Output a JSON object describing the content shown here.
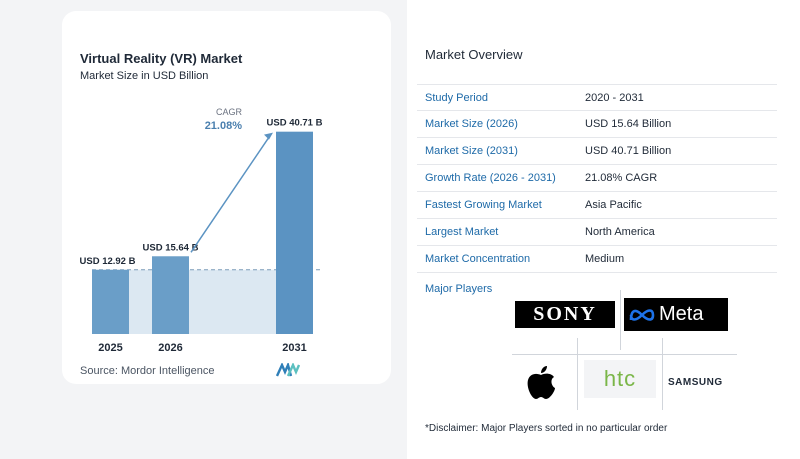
{
  "chart_data": {
    "type": "bar",
    "title": "Virtual Reality (VR) Market",
    "subtitle": "Market Size in USD Billion",
    "categories": [
      "2025",
      "2026",
      "2031"
    ],
    "values": [
      12.92,
      15.64,
      40.71
    ],
    "value_labels": [
      "USD 12.92 B",
      "USD 15.64 B",
      "USD 40.71 B"
    ],
    "cagr_label": "CAGR",
    "cagr_value": "21.08%",
    "source": "Source:  Mordor Intelligence",
    "colors": {
      "bar": "#6a9ec8",
      "bar_last": "#5b93c2",
      "band": "#dce8f2",
      "arrow": "#5b93c2",
      "cagr": "#4a7fae"
    }
  },
  "overview": {
    "title": "Market Overview",
    "rows": [
      {
        "label": "Study Period",
        "value": "2020 - 2031"
      },
      {
        "label": "Market Size (2026)",
        "value": "USD 15.64 Billion"
      },
      {
        "label": "Market Size (2031)",
        "value": "USD 40.71 Billion"
      },
      {
        "label": "Growth Rate (2026 - 2031)",
        "value": "21.08% CAGR"
      },
      {
        "label": "Fastest Growing Market",
        "value": "Asia Pacific"
      },
      {
        "label": "Largest Market",
        "value": "North America"
      },
      {
        "label": "Market Concentration",
        "value": "Medium"
      }
    ],
    "major_players_label": "Major Players",
    "players": {
      "sony": "SONY",
      "meta": "Meta",
      "htc": "htc",
      "samsung": "SAMSUNG"
    },
    "disclaimer": "*Disclaimer: Major Players sorted in no particular order"
  }
}
